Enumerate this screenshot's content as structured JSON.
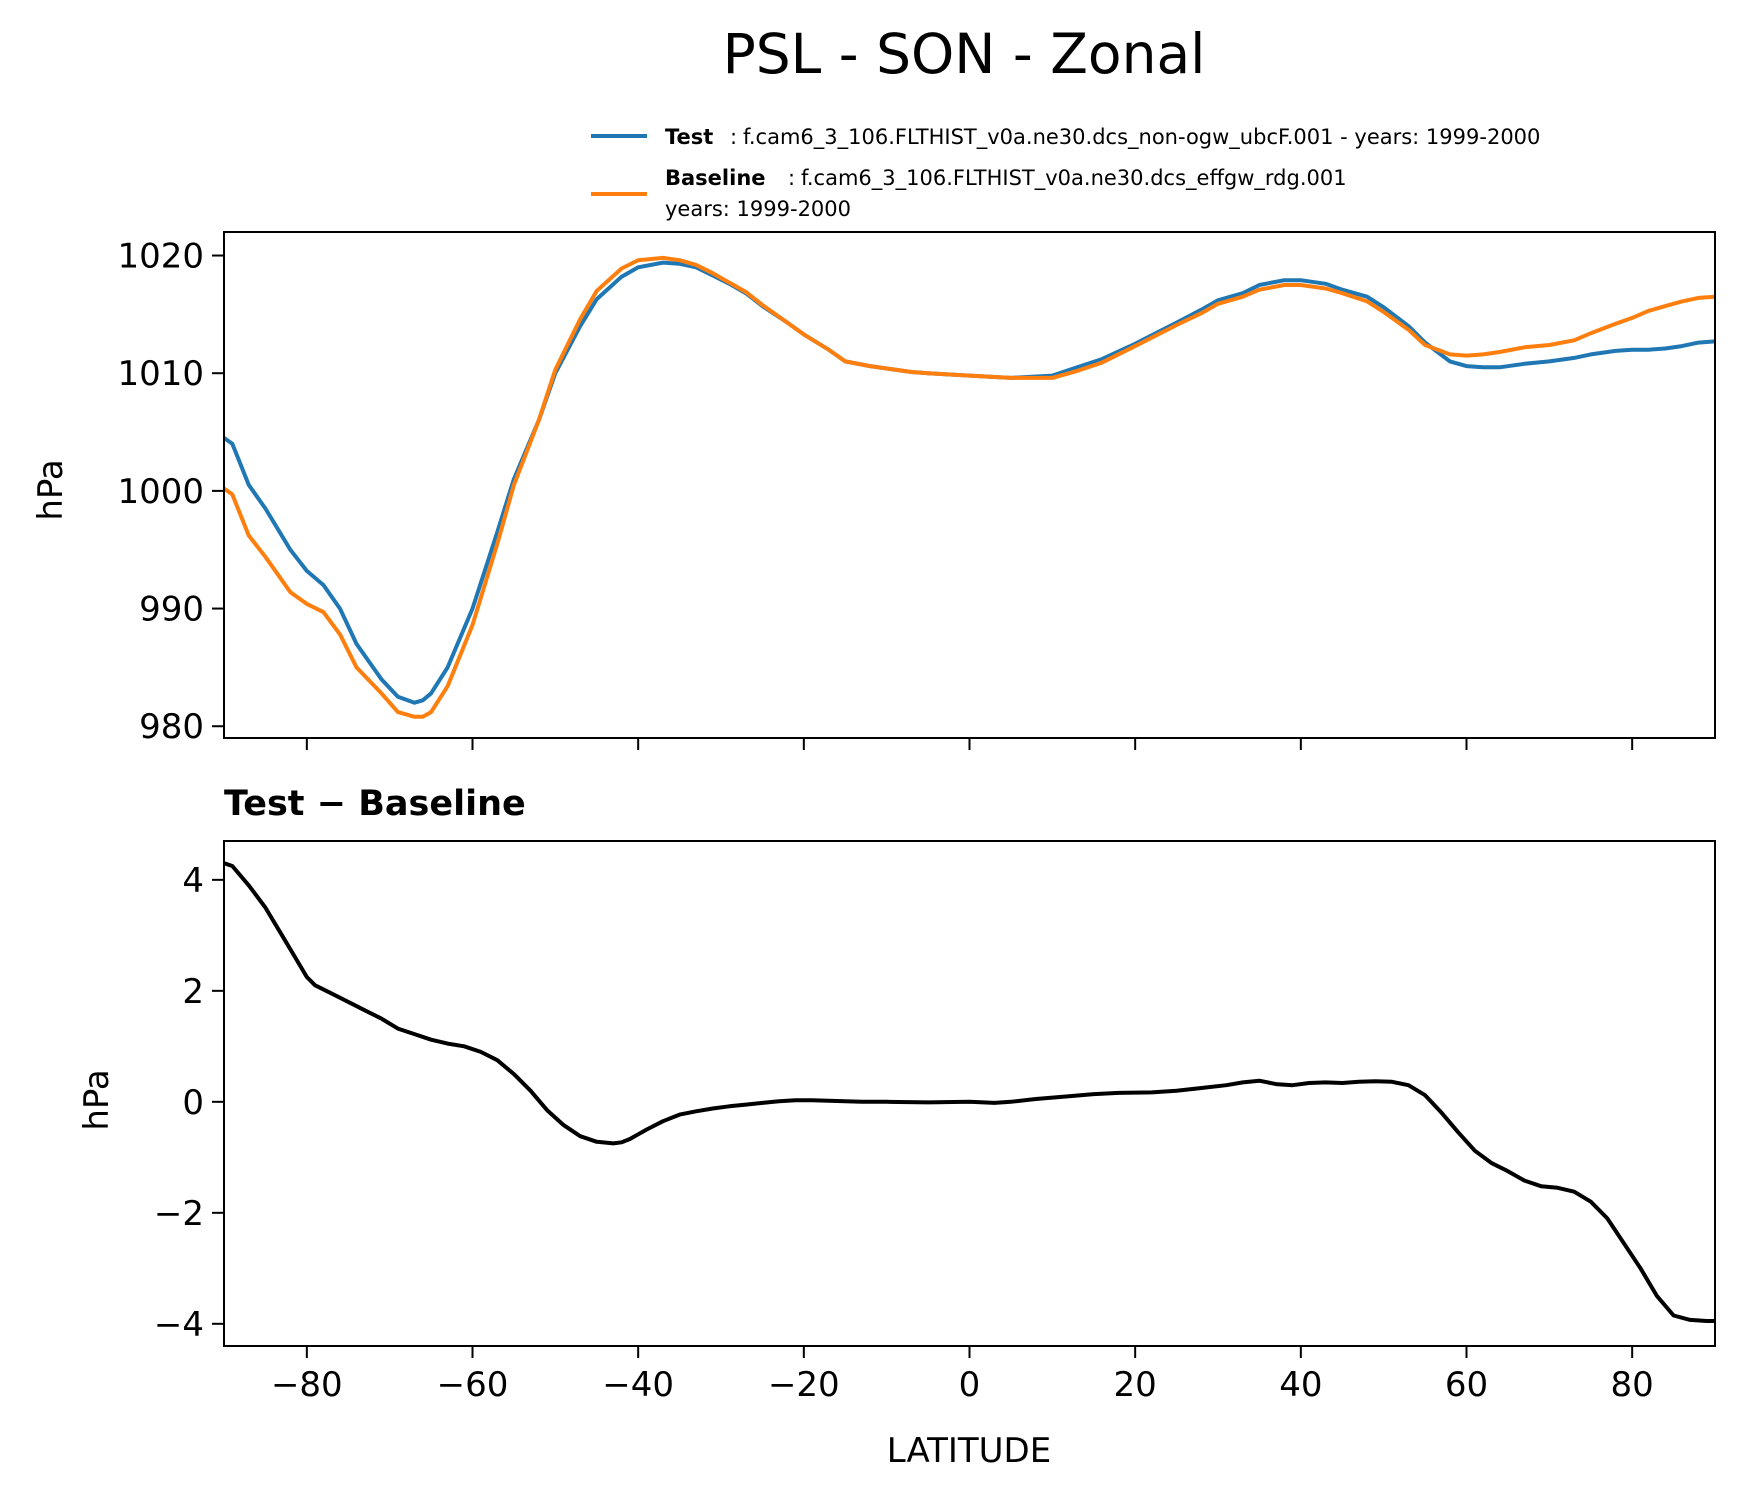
{
  "figure": {
    "title": "PSL - SON - Zonal",
    "background": "#ffffff"
  },
  "chart_data": [
    {
      "type": "line",
      "name": "top-panel",
      "title": "",
      "xlabel": "",
      "ylabel": "hPa",
      "xlim": [
        -90,
        90
      ],
      "ylim": [
        979,
        1022
      ],
      "yticks": [
        980,
        990,
        1000,
        1010,
        1020
      ],
      "ytick_labels": [
        "980",
        "990",
        "1000",
        "1010",
        "1020"
      ],
      "xticks": [
        -80,
        -60,
        -40,
        -20,
        0,
        20,
        40,
        60,
        80
      ],
      "show_xtick_labels": false,
      "grid": false,
      "legend": {
        "placement": "above",
        "entries": [
          {
            "bold": "Test",
            "sep": ":",
            "text": "f.cam6_3_106.FLTHIST_v0a.ne30.dcs_non-ogw_ubcF.001 - years: 1999-2000",
            "text2": "",
            "color": "#1f77b4"
          },
          {
            "bold": "Baseline",
            "sep": ":",
            "text": "f.cam6_3_106.FLTHIST_v0a.ne30.dcs_effgw_rdg.001",
            "text2": "years: 1999-2000",
            "color": "#ff7f0e"
          }
        ]
      },
      "series": [
        {
          "name": "Test",
          "color": "#1f77b4",
          "x": [
            -90,
            -89,
            -87,
            -85,
            -82,
            -80,
            -78,
            -76,
            -74,
            -71,
            -69,
            -67,
            -66,
            -65,
            -63,
            -60,
            -57,
            -55,
            -52,
            -50,
            -47,
            -45,
            -42,
            -40,
            -37,
            -35,
            -33,
            -31,
            -29,
            -27,
            -25,
            -22,
            -20,
            -17,
            -15,
            -12,
            -10,
            -7,
            -5,
            0,
            5,
            10,
            13,
            16,
            20,
            25,
            28,
            30,
            33,
            35,
            38,
            40,
            43,
            45,
            48,
            50,
            53,
            55,
            58,
            60,
            62,
            64,
            67,
            70,
            73,
            75,
            78,
            80,
            82,
            84,
            86,
            88,
            90
          ],
          "values": [
            1004.5,
            1004,
            1000.5,
            998.5,
            995,
            993.2,
            992,
            990,
            987,
            984,
            982.5,
            982,
            982.2,
            982.8,
            985,
            990,
            996.5,
            1001,
            1006,
            1010,
            1014,
            1016.3,
            1018.2,
            1019,
            1019.4,
            1019.3,
            1019,
            1018.3,
            1017.6,
            1016.8,
            1015.7,
            1014.3,
            1013.3,
            1012,
            1011,
            1010.6,
            1010.4,
            1010.1,
            1010,
            1009.8,
            1009.6,
            1009.8,
            1010.5,
            1011.2,
            1012.5,
            1014.3,
            1015.4,
            1016.2,
            1016.8,
            1017.5,
            1017.9,
            1017.9,
            1017.6,
            1017.1,
            1016.5,
            1015.6,
            1014,
            1012.6,
            1011,
            1010.6,
            1010.5,
            1010.5,
            1010.8,
            1011,
            1011.3,
            1011.6,
            1011.9,
            1012,
            1012,
            1012.1,
            1012.3,
            1012.6,
            1012.7
          ]
        },
        {
          "name": "Baseline",
          "color": "#ff7f0e",
          "x": [
            -90,
            -89,
            -87,
            -85,
            -82,
            -80,
            -78,
            -76,
            -74,
            -71,
            -69,
            -67,
            -66,
            -65,
            -63,
            -60,
            -57,
            -55,
            -52,
            -50,
            -47,
            -45,
            -42,
            -40,
            -37,
            -35,
            -33,
            -31,
            -29,
            -27,
            -25,
            -22,
            -20,
            -17,
            -15,
            -12,
            -10,
            -7,
            -5,
            0,
            5,
            10,
            13,
            16,
            20,
            25,
            28,
            30,
            33,
            35,
            38,
            40,
            43,
            45,
            48,
            50,
            53,
            55,
            58,
            60,
            62,
            64,
            67,
            70,
            73,
            75,
            78,
            80,
            82,
            84,
            86,
            88,
            90
          ],
          "values": [
            1000.2,
            999.7,
            996.2,
            994.4,
            991.4,
            990.4,
            989.7,
            987.8,
            985,
            982.8,
            981.2,
            980.8,
            980.8,
            981.2,
            983.4,
            988.6,
            995.5,
            1000.5,
            1006,
            1010.3,
            1014.6,
            1017,
            1018.9,
            1019.6,
            1019.8,
            1019.6,
            1019.2,
            1018.5,
            1017.7,
            1016.9,
            1015.8,
            1014.3,
            1013.3,
            1012,
            1011,
            1010.6,
            1010.4,
            1010.1,
            1010,
            1009.8,
            1009.6,
            1009.6,
            1010.2,
            1010.9,
            1012.3,
            1014.1,
            1015.1,
            1015.9,
            1016.5,
            1017.1,
            1017.5,
            1017.5,
            1017.2,
            1016.8,
            1016.1,
            1015.2,
            1013.7,
            1012.4,
            1011.6,
            1011.5,
            1011.6,
            1011.8,
            1012.2,
            1012.4,
            1012.8,
            1013.4,
            1014.2,
            1014.7,
            1015.3,
            1015.7,
            1016.1,
            1016.4,
            1016.5
          ]
        }
      ]
    },
    {
      "type": "line",
      "name": "bottom-panel",
      "title": "Test − Baseline",
      "xlabel": "LATITUDE",
      "ylabel": "hPa",
      "xlim": [
        -90,
        90
      ],
      "ylim": [
        -4.4,
        4.7
      ],
      "yticks": [
        -4,
        -2,
        0,
        2,
        4
      ],
      "ytick_labels": [
        "−4",
        "−2",
        "0",
        "2",
        "4"
      ],
      "xticks": [
        -80,
        -60,
        -40,
        -20,
        0,
        20,
        40,
        60,
        80
      ],
      "xtick_labels": [
        "−80",
        "−60",
        "−40",
        "−20",
        "0",
        "20",
        "40",
        "60",
        "80"
      ],
      "grid": false,
      "series": [
        {
          "name": "Test - Baseline",
          "color": "#000000",
          "x": [
            -90,
            -89,
            -87,
            -85,
            -83,
            -81,
            -80,
            -79,
            -77,
            -75,
            -73,
            -71,
            -69,
            -67,
            -65,
            -63,
            -61,
            -59,
            -57,
            -55,
            -53,
            -51,
            -49,
            -47,
            -45,
            -43,
            -42,
            -41,
            -39,
            -37,
            -35,
            -33,
            -31,
            -29,
            -27,
            -25,
            -23,
            -21,
            -19,
            -17,
            -15,
            -13,
            -10,
            -5,
            0,
            3,
            5,
            8,
            12,
            15,
            18,
            22,
            25,
            28,
            31,
            33,
            35,
            37,
            39,
            41,
            43,
            45,
            47,
            49,
            51,
            53,
            55,
            57,
            59,
            61,
            63,
            65,
            67,
            69,
            71,
            73,
            75,
            77,
            79,
            81,
            83,
            85,
            87,
            89,
            90
          ],
          "values": [
            4.3,
            4.25,
            3.9,
            3.5,
            3.0,
            2.5,
            2.25,
            2.1,
            1.95,
            1.8,
            1.65,
            1.5,
            1.32,
            1.22,
            1.12,
            1.05,
            1.0,
            0.9,
            0.75,
            0.5,
            0.2,
            -0.15,
            -0.42,
            -0.62,
            -0.72,
            -0.75,
            -0.73,
            -0.67,
            -0.5,
            -0.35,
            -0.23,
            -0.17,
            -0.12,
            -0.08,
            -0.05,
            -0.02,
            0.01,
            0.03,
            0.03,
            0.02,
            0.01,
            0.0,
            0.0,
            -0.01,
            0.0,
            -0.02,
            0.0,
            0.05,
            0.1,
            0.14,
            0.16,
            0.17,
            0.2,
            0.25,
            0.3,
            0.35,
            0.38,
            0.32,
            0.3,
            0.34,
            0.35,
            0.34,
            0.36,
            0.37,
            0.36,
            0.3,
            0.12,
            -0.2,
            -0.55,
            -0.88,
            -1.1,
            -1.25,
            -1.42,
            -1.52,
            -1.55,
            -1.62,
            -1.8,
            -2.1,
            -2.55,
            -3.0,
            -3.5,
            -3.85,
            -3.93,
            -3.95,
            -3.95
          ]
        }
      ]
    }
  ]
}
